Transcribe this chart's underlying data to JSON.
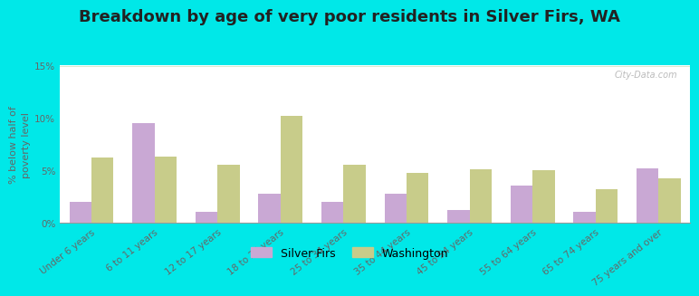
{
  "title": "Breakdown by age of very poor residents in Silver Firs, WA",
  "ylabel": "% below half of\npoverty level",
  "categories": [
    "Under 6 years",
    "6 to 11 years",
    "12 to 17 years",
    "18 to 24 years",
    "25 to 34 years",
    "35 to 44 years",
    "45 to 54 years",
    "55 to 64 years",
    "65 to 74 years",
    "75 years and over"
  ],
  "silver_firs": [
    2.0,
    9.5,
    1.0,
    2.8,
    2.0,
    2.8,
    1.2,
    3.5,
    1.0,
    5.2
  ],
  "washington": [
    6.2,
    6.3,
    5.5,
    10.2,
    5.5,
    4.7,
    5.1,
    5.0,
    3.2,
    4.2
  ],
  "silver_firs_color": "#c9a8d4",
  "washington_color": "#c8cc8a",
  "background_outer": "#00e8e8",
  "bg_color_top": "#f2f5e4",
  "bg_color_bottom": "#d8e8cc",
  "title_fontsize": 13,
  "ylabel_fontsize": 8,
  "tick_fontsize": 7.5,
  "legend_fontsize": 9,
  "ylim": [
    0,
    15
  ],
  "yticks": [
    0,
    5,
    10,
    15
  ],
  "ytick_labels": [
    "0%",
    "5%",
    "10%",
    "15%"
  ],
  "bar_width": 0.35,
  "legend_labels": [
    "Silver Firs",
    "Washington"
  ],
  "watermark": "City-Data.com"
}
